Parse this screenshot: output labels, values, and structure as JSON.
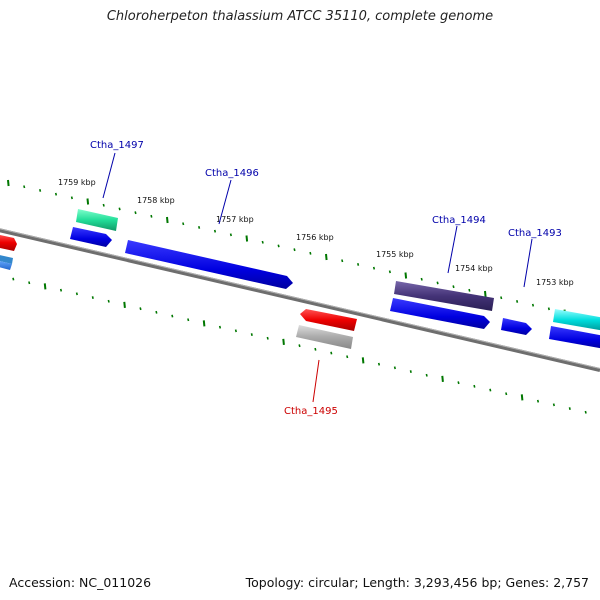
{
  "title": "Chloroherpeton thalassium ATCC 35110, complete genome",
  "footer": {
    "accession": "Accession: NC_011026",
    "stats": "Topology: circular; Length: 3,293,456 bp; Genes: 2,757"
  },
  "ruler_labels": [
    "1759 kbp",
    "1758 kbp",
    "1757 kbp",
    "1756 kbp",
    "1755 kbp",
    "1754 kbp",
    "1753 kbp"
  ],
  "gene_labels": [
    {
      "id": "Ctha_1497",
      "color": "#0000aa"
    },
    {
      "id": "Ctha_1496",
      "color": "#0000aa"
    },
    {
      "id": "Ctha_1494",
      "color": "#0000aa"
    },
    {
      "id": "Ctha_1493",
      "color": "#0000aa"
    },
    {
      "id": "Ctha_1495",
      "color": "#cc0000"
    }
  ],
  "colors": {
    "backbone": "#777777",
    "ticks": "#007700",
    "cds_blue": "#0000ee",
    "rna_green": "#22cc88",
    "purple": "#443377",
    "red": "#ee0000",
    "gray": "#aaaaaa",
    "cyan": "#00cccc"
  }
}
